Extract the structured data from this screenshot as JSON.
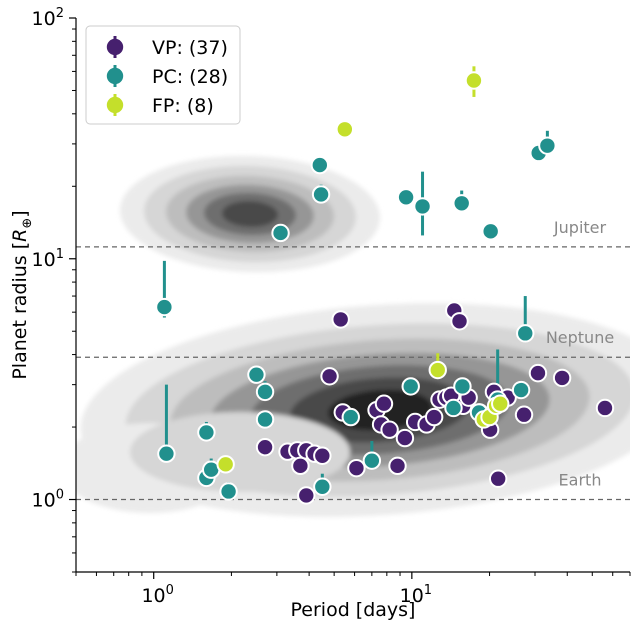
{
  "chart_data": {
    "type": "scatter",
    "xlabel": "Period [days]",
    "ylabel_text": "Planet radius [",
    "ylabel_symbol": "R",
    "ylabel_sub": "⊕",
    "ylabel_close": "]",
    "xscale": "log",
    "yscale": "log",
    "xlim": [
      0.5,
      70
    ],
    "ylim": [
      0.5,
      100
    ],
    "x_ticks": [
      {
        "value": 1,
        "base": "10",
        "exp": "0"
      },
      {
        "value": 10,
        "base": "10",
        "exp": "1"
      }
    ],
    "y_ticks": [
      {
        "value": 1,
        "base": "10",
        "exp": "0"
      },
      {
        "value": 10,
        "base": "10",
        "exp": "1"
      },
      {
        "value": 100,
        "base": "10",
        "exp": "2"
      }
    ],
    "reference_lines": [
      {
        "label": "Jupiter",
        "y": 11.2
      },
      {
        "label": "Neptune",
        "y": 3.9
      },
      {
        "label": "Earth",
        "y": 1.0
      }
    ],
    "legend_position": "top-left",
    "legend": [
      {
        "label": "VP: (37)",
        "color": "#46206e"
      },
      {
        "label": "PC: (28)",
        "color": "#21908d"
      },
      {
        "label": "FP: (8)",
        "color": "#c4df2b"
      }
    ],
    "density_contours": {
      "levels": 6,
      "colors": [
        "#ebebeb",
        "#d6d6d6",
        "#bdbdbd",
        "#969696",
        "#6e6e6e",
        "#4a4a4a",
        "#232323"
      ]
    },
    "series": [
      {
        "name": "VP: (37)",
        "color": "#46206e",
        "points": [
          {
            "x": 2.7,
            "y": 1.65
          },
          {
            "x": 3.3,
            "y": 1.58
          },
          {
            "x": 3.6,
            "y": 1.6
          },
          {
            "x": 3.7,
            "y": 1.38
          },
          {
            "x": 3.9,
            "y": 1.6
          },
          {
            "x": 4.2,
            "y": 1.55
          },
          {
            "x": 4.5,
            "y": 1.52
          },
          {
            "x": 3.9,
            "y": 1.04
          },
          {
            "x": 4.8,
            "y": 3.25
          },
          {
            "x": 5.3,
            "y": 5.6
          },
          {
            "x": 5.4,
            "y": 2.3
          },
          {
            "x": 6.1,
            "y": 1.35
          },
          {
            "x": 7.3,
            "y": 2.35
          },
          {
            "x": 7.6,
            "y": 2.05
          },
          {
            "x": 7.8,
            "y": 2.5
          },
          {
            "x": 8.2,
            "y": 1.95
          },
          {
            "x": 8.8,
            "y": 1.38
          },
          {
            "x": 9.4,
            "y": 1.8
          },
          {
            "x": 10.3,
            "y": 2.1
          },
          {
            "x": 11.4,
            "y": 2.05
          },
          {
            "x": 12.2,
            "y": 2.2
          },
          {
            "x": 12.8,
            "y": 2.6
          },
          {
            "x": 13.6,
            "y": 2.65
          },
          {
            "x": 14.2,
            "y": 2.7
          },
          {
            "x": 14.6,
            "y": 6.1
          },
          {
            "x": 15.3,
            "y": 5.5
          },
          {
            "x": 15.8,
            "y": 2.45
          },
          {
            "x": 16.6,
            "y": 2.65
          },
          {
            "x": 18.3,
            "y": 2.3
          },
          {
            "x": 20.1,
            "y": 1.95
          },
          {
            "x": 20.8,
            "y": 2.8
          },
          {
            "x": 21.6,
            "y": 1.22
          },
          {
            "x": 23.5,
            "y": 2.65
          },
          {
            "x": 27.2,
            "y": 2.25
          },
          {
            "x": 30.8,
            "y": 3.35
          },
          {
            "x": 38.2,
            "y": 3.2
          },
          {
            "x": 56.0,
            "y": 2.4
          }
        ]
      },
      {
        "name": "PC: (28)",
        "color": "#21908d",
        "points": [
          {
            "x": 1.1,
            "y": 6.3,
            "err_low": 0.6,
            "err_high": 3.5
          },
          {
            "x": 1.12,
            "y": 1.55,
            "err_low": 0.05,
            "err_high": 1.45
          },
          {
            "x": 1.6,
            "y": 1.9,
            "err_low": 0.1,
            "err_high": 0.2
          },
          {
            "x": 1.6,
            "y": 1.23,
            "err_low": 0.05,
            "err_high": 0.1
          },
          {
            "x": 1.67,
            "y": 1.33,
            "err_low": 0.05,
            "err_high": 0.15
          },
          {
            "x": 1.95,
            "y": 1.08,
            "err_low": 0.05,
            "err_high": 0.1
          },
          {
            "x": 2.5,
            "y": 3.3,
            "err_low": 0.1,
            "err_high": 0.15
          },
          {
            "x": 2.7,
            "y": 2.8,
            "err_low": 0.1,
            "err_high": 0.3
          },
          {
            "x": 2.7,
            "y": 2.15,
            "err_low": 0.1,
            "err_high": 0.15
          },
          {
            "x": 3.1,
            "y": 12.8,
            "err_low": 0.4,
            "err_high": 0.5
          },
          {
            "x": 4.4,
            "y": 24.5,
            "err_low": 0.5,
            "err_high": 0.8
          },
          {
            "x": 4.45,
            "y": 18.5,
            "err_low": 1.2,
            "err_high": 1.8
          },
          {
            "x": 4.5,
            "y": 1.13,
            "err_low": 0.05,
            "err_high": 0.15
          },
          {
            "x": 5.8,
            "y": 2.2,
            "err_low": 0.1,
            "err_high": 0.15
          },
          {
            "x": 7.0,
            "y": 1.45,
            "err_low": 0.05,
            "err_high": 0.3
          },
          {
            "x": 9.5,
            "y": 18.0,
            "err_low": 0.6,
            "err_high": 0.6
          },
          {
            "x": 9.9,
            "y": 2.95,
            "err_low": 0.1,
            "err_high": 0.1
          },
          {
            "x": 11.0,
            "y": 16.5,
            "err_low": 4.0,
            "err_high": 6.5
          },
          {
            "x": 14.5,
            "y": 2.4,
            "err_low": 0.1,
            "err_high": 0.1
          },
          {
            "x": 15.6,
            "y": 17.0,
            "err_low": 1.0,
            "err_high": 2.2
          },
          {
            "x": 15.7,
            "y": 2.95,
            "err_low": 0.1,
            "err_high": 0.2
          },
          {
            "x": 20.2,
            "y": 13.0,
            "err_low": 0.4,
            "err_high": 0.4
          },
          {
            "x": 21.5,
            "y": 2.6,
            "err_low": 0.1,
            "err_high": 1.6
          },
          {
            "x": 26.5,
            "y": 2.85,
            "err_low": 0.1,
            "err_high": 0.2
          },
          {
            "x": 27.5,
            "y": 4.9,
            "err_low": 0.4,
            "err_high": 2.1
          },
          {
            "x": 31.0,
            "y": 27.5,
            "err_low": 0.8,
            "err_high": 1.2
          },
          {
            "x": 33.5,
            "y": 29.5,
            "err_low": 2.2,
            "err_high": 4.5
          },
          {
            "x": 18.2,
            "y": 2.3,
            "err_low": 0.1,
            "err_high": 0.1
          }
        ]
      },
      {
        "name": "FP: (8)",
        "color": "#c4df2b",
        "points": [
          {
            "x": 1.9,
            "y": 1.4,
            "err_low": 0.05,
            "err_high": 0.05
          },
          {
            "x": 5.5,
            "y": 34.5,
            "err_low": 0.8,
            "err_high": 0.8
          },
          {
            "x": 12.6,
            "y": 3.45,
            "err_low": 0.2,
            "err_high": 0.6
          },
          {
            "x": 17.4,
            "y": 55.0,
            "err_low": 8.0,
            "err_high": 8.0
          },
          {
            "x": 19.0,
            "y": 2.15,
            "err_low": 0.08,
            "err_high": 0.08
          },
          {
            "x": 20.0,
            "y": 2.2,
            "err_low": 0.08,
            "err_high": 0.08
          },
          {
            "x": 21.2,
            "y": 2.45,
            "err_low": 0.08,
            "err_high": 0.08
          },
          {
            "x": 22.0,
            "y": 2.5,
            "err_low": 0.08,
            "err_high": 0.08
          }
        ]
      }
    ]
  }
}
